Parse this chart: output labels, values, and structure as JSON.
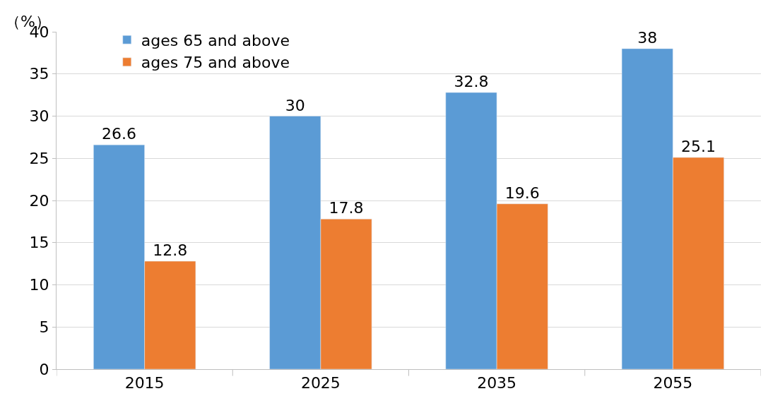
{
  "chart_data": {
    "type": "bar",
    "ylabel": "（%）",
    "categories": [
      "2015",
      "2025",
      "2035",
      "2055"
    ],
    "series": [
      {
        "name": "ages 65 and above",
        "color": "#5b9bd5",
        "values": [
          26.6,
          30,
          32.8,
          38
        ]
      },
      {
        "name": "ages 75 and above",
        "color": "#ed7d31",
        "values": [
          12.8,
          17.8,
          19.6,
          25.1
        ]
      }
    ],
    "ylim": [
      0,
      40
    ],
    "yticks": [
      0,
      5,
      10,
      15,
      20,
      25,
      30,
      35,
      40
    ],
    "grid": "y",
    "legend": "top left",
    "data_labels": true
  }
}
